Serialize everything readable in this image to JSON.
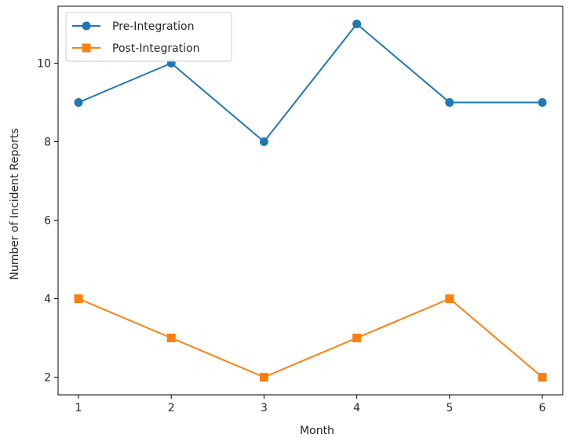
{
  "chart_data": {
    "type": "line",
    "title": "",
    "xlabel": "Month",
    "ylabel": "Number of Incident Reports",
    "x": [
      1,
      2,
      3,
      4,
      5,
      6
    ],
    "xticks": [
      "1",
      "2",
      "3",
      "4",
      "5",
      "6"
    ],
    "yticks": [
      "2",
      "4",
      "6",
      "8",
      "10"
    ],
    "xlim": [
      0.78,
      6.22
    ],
    "ylim": [
      1.55,
      11.45
    ],
    "grid": false,
    "legend_position": "top-left",
    "series": [
      {
        "name": "Pre-Integration",
        "values": [
          9,
          10,
          8,
          11,
          9,
          9
        ],
        "color": "#1f77b4",
        "marker": "circle"
      },
      {
        "name": "Post-Integration",
        "values": [
          4,
          3,
          2,
          3,
          4,
          2
        ],
        "color": "#ff7f0e",
        "marker": "square"
      }
    ]
  }
}
